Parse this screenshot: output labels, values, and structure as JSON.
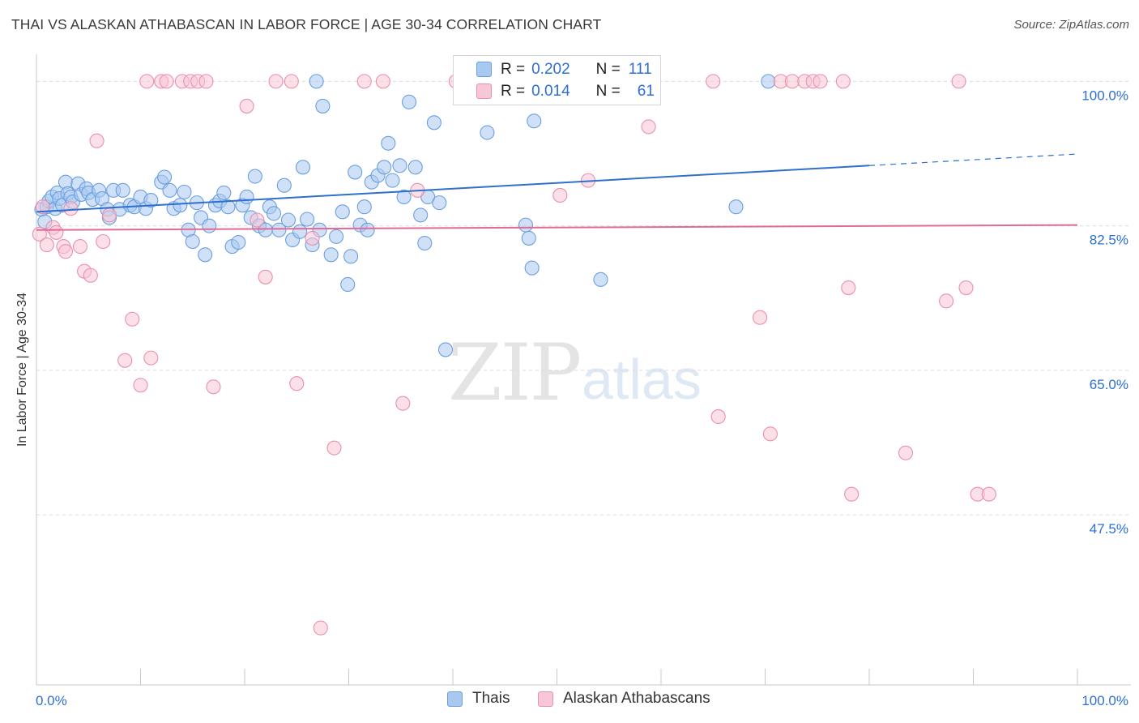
{
  "title": "THAI VS ALASKAN ATHABASCAN IN LABOR FORCE | AGE 30-34 CORRELATION CHART",
  "source": "Source: ZipAtlas.com",
  "watermark": {
    "zip": "ZIP",
    "atlas": "atlas"
  },
  "legend_top": {
    "rows": [
      {
        "r_label": "R =",
        "r_value": "0.202",
        "n_label": "N =",
        "n_value": "111",
        "color": "#a9c8f0"
      },
      {
        "r_label": "R =",
        "r_value": "0.014",
        "n_label": "N =",
        "n_value": "61",
        "color": "#f6b9cc"
      }
    ]
  },
  "legend_bottom": [
    {
      "label": "Thais",
      "color": "#a9c8f0",
      "border": "#6a9fe0"
    },
    {
      "label": "Alaskan Athabascans",
      "color": "#f8c7d6",
      "border": "#ea8fae"
    }
  ],
  "chart_data": {
    "type": "scatter",
    "title": "THAI VS ALASKAN ATHABASCAN IN LABOR FORCE | AGE 30-34 CORRELATION CHART",
    "xlabel": "",
    "ylabel": "In Labor Force | Age 30-34",
    "xlim": [
      0,
      100
    ],
    "ylim": [
      27,
      102
    ],
    "x_tick_labels": [
      "0.0%",
      "100.0%"
    ],
    "y_ticks": [
      100.0,
      82.5,
      65.0,
      47.5
    ],
    "y_tick_labels": [
      "100.0%",
      "82.5%",
      "65.0%",
      "47.5%"
    ],
    "grid": true,
    "series": [
      {
        "name": "Thais",
        "color": "#6a9fe0",
        "fill": "#a9c8f0",
        "trend": {
          "x0": 0,
          "y0": 84.2,
          "x1": 80,
          "y1": 89.8,
          "dash_to_x": 100,
          "dash_to_y": 91.2,
          "color": "#2f6fce"
        },
        "points": [
          [
            0.5,
            84.5
          ],
          [
            0.8,
            83.0
          ],
          [
            1.0,
            84.8
          ],
          [
            1.2,
            85.5
          ],
          [
            1.5,
            86.0
          ],
          [
            1.8,
            84.6
          ],
          [
            2.0,
            86.5
          ],
          [
            2.2,
            85.8
          ],
          [
            2.5,
            85.0
          ],
          [
            2.8,
            87.8
          ],
          [
            3.0,
            86.4
          ],
          [
            3.3,
            86.0
          ],
          [
            3.5,
            85.4
          ],
          [
            4.0,
            87.6
          ],
          [
            4.3,
            86.3
          ],
          [
            4.8,
            87.0
          ],
          [
            5.0,
            86.5
          ],
          [
            5.4,
            85.7
          ],
          [
            6.0,
            86.8
          ],
          [
            6.3,
            85.8
          ],
          [
            6.8,
            84.5
          ],
          [
            7.0,
            83.5
          ],
          [
            7.4,
            86.8
          ],
          [
            8.0,
            84.5
          ],
          [
            8.3,
            86.8
          ],
          [
            9.0,
            85.0
          ],
          [
            9.4,
            84.8
          ],
          [
            10.0,
            86.0
          ],
          [
            10.5,
            84.6
          ],
          [
            11.0,
            85.6
          ],
          [
            12.0,
            87.8
          ],
          [
            12.3,
            88.4
          ],
          [
            12.8,
            86.8
          ],
          [
            13.2,
            84.6
          ],
          [
            13.8,
            85.0
          ],
          [
            14.2,
            86.6
          ],
          [
            14.6,
            82.0
          ],
          [
            15.0,
            80.6
          ],
          [
            15.4,
            85.3
          ],
          [
            15.8,
            83.5
          ],
          [
            16.2,
            79.0
          ],
          [
            16.6,
            82.5
          ],
          [
            17.2,
            85.0
          ],
          [
            17.6,
            85.5
          ],
          [
            18.0,
            86.5
          ],
          [
            18.4,
            84.8
          ],
          [
            18.8,
            80.0
          ],
          [
            19.4,
            80.5
          ],
          [
            19.8,
            85.0
          ],
          [
            20.2,
            86.0
          ],
          [
            20.6,
            83.5
          ],
          [
            21.0,
            88.5
          ],
          [
            21.4,
            82.5
          ],
          [
            22.0,
            82.0
          ],
          [
            22.4,
            84.8
          ],
          [
            22.8,
            84.0
          ],
          [
            23.3,
            82.0
          ],
          [
            23.8,
            87.4
          ],
          [
            24.2,
            83.2
          ],
          [
            24.6,
            80.8
          ],
          [
            25.3,
            81.8
          ],
          [
            25.6,
            89.6
          ],
          [
            26.0,
            83.3
          ],
          [
            26.5,
            80.2
          ],
          [
            26.9,
            100.0
          ],
          [
            27.2,
            82.0
          ],
          [
            27.5,
            97.0
          ],
          [
            28.3,
            79.0
          ],
          [
            28.8,
            81.2
          ],
          [
            29.4,
            84.2
          ],
          [
            29.9,
            75.4
          ],
          [
            30.2,
            78.8
          ],
          [
            30.6,
            89.0
          ],
          [
            31.1,
            82.6
          ],
          [
            31.5,
            84.8
          ],
          [
            31.8,
            82.0
          ],
          [
            32.2,
            87.8
          ],
          [
            32.8,
            88.6
          ],
          [
            33.4,
            89.6
          ],
          [
            33.8,
            92.5
          ],
          [
            34.2,
            88.0
          ],
          [
            34.9,
            89.8
          ],
          [
            35.3,
            86.0
          ],
          [
            35.8,
            97.5
          ],
          [
            36.4,
            89.6
          ],
          [
            36.9,
            83.8
          ],
          [
            37.3,
            80.4
          ],
          [
            37.6,
            86.0
          ],
          [
            38.2,
            95.0
          ],
          [
            38.7,
            85.3
          ],
          [
            39.3,
            67.5
          ],
          [
            41.2,
            100.0
          ],
          [
            43.3,
            93.8
          ],
          [
            47.0,
            82.6
          ],
          [
            47.3,
            81.0
          ],
          [
            47.6,
            77.4
          ],
          [
            47.8,
            95.2
          ],
          [
            54.2,
            76.0
          ],
          [
            67.2,
            84.8
          ],
          [
            70.3,
            100.0
          ]
        ]
      },
      {
        "name": "Alaskan Athabascans",
        "color": "#ea8fae",
        "fill": "#f8c7d6",
        "trend": {
          "x0": 0,
          "y0": 82.0,
          "x1": 100,
          "y1": 82.6,
          "color": "#e26a96"
        },
        "points": [
          [
            0.3,
            81.5
          ],
          [
            0.6,
            84.8
          ],
          [
            1.0,
            80.2
          ],
          [
            1.6,
            82.3
          ],
          [
            1.9,
            81.7
          ],
          [
            2.6,
            80.0
          ],
          [
            2.8,
            79.4
          ],
          [
            3.3,
            84.6
          ],
          [
            4.2,
            80.0
          ],
          [
            4.6,
            77.0
          ],
          [
            5.2,
            76.5
          ],
          [
            5.8,
            92.8
          ],
          [
            6.4,
            80.6
          ],
          [
            7.0,
            83.8
          ],
          [
            8.5,
            66.2
          ],
          [
            9.2,
            71.2
          ],
          [
            10.0,
            63.2
          ],
          [
            10.6,
            100.0
          ],
          [
            11.0,
            66.5
          ],
          [
            12.0,
            100.0
          ],
          [
            12.5,
            100.0
          ],
          [
            14.0,
            100.0
          ],
          [
            14.8,
            100.0
          ],
          [
            15.5,
            100.0
          ],
          [
            16.3,
            100.0
          ],
          [
            17.0,
            63.0
          ],
          [
            20.2,
            97.0
          ],
          [
            21.2,
            83.2
          ],
          [
            22.0,
            76.3
          ],
          [
            23.0,
            100.0
          ],
          [
            24.5,
            100.0
          ],
          [
            25.0,
            63.4
          ],
          [
            26.5,
            81.0
          ],
          [
            27.3,
            33.8
          ],
          [
            28.6,
            55.6
          ],
          [
            31.5,
            100.0
          ],
          [
            33.3,
            100.0
          ],
          [
            35.2,
            61.0
          ],
          [
            36.6,
            86.8
          ],
          [
            40.3,
            100.0
          ],
          [
            48.2,
            100.0
          ],
          [
            50.3,
            86.2
          ],
          [
            53.0,
            88.0
          ],
          [
            58.8,
            94.5
          ],
          [
            65.0,
            100.0
          ],
          [
            65.5,
            59.4
          ],
          [
            69.5,
            71.4
          ],
          [
            70.5,
            57.3
          ],
          [
            71.5,
            100.0
          ],
          [
            72.6,
            100.0
          ],
          [
            73.8,
            100.0
          ],
          [
            74.6,
            100.0
          ],
          [
            75.3,
            100.0
          ],
          [
            77.5,
            100.0
          ],
          [
            78.0,
            75.0
          ],
          [
            78.3,
            50.0
          ],
          [
            83.5,
            55.0
          ],
          [
            87.4,
            73.4
          ],
          [
            88.6,
            100.0
          ],
          [
            89.3,
            75.0
          ],
          [
            90.4,
            50.0
          ],
          [
            91.5,
            50.0
          ]
        ]
      }
    ]
  }
}
